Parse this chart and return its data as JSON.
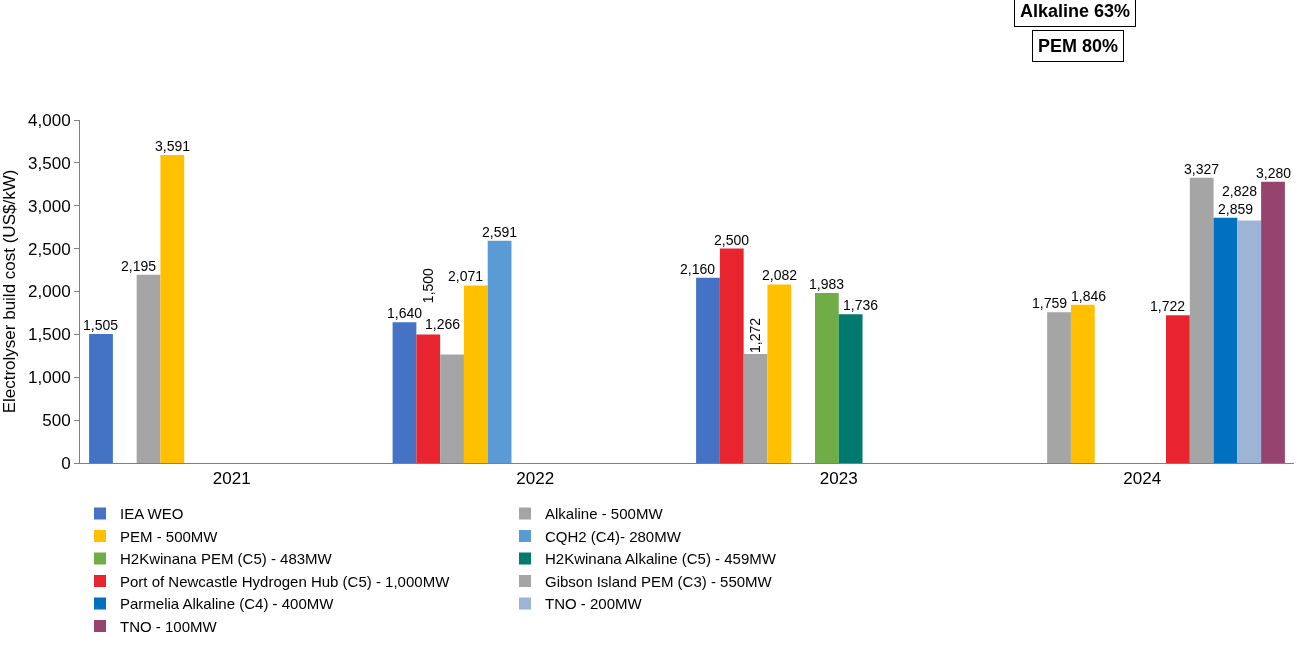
{
  "chart_data": {
    "type": "bar",
    "ylabel": "Electrolyser build cost (US$/kW)",
    "categories": [
      "2021",
      "2022",
      "2023",
      "2024"
    ],
    "ylim": [
      0,
      4000
    ],
    "yticks": [
      0,
      500,
      {
        "value": 1000,
        "label": "1,000"
      },
      {
        "value": 1500,
        "label": "1,500"
      },
      {
        "value": 2000,
        "label": "2,000"
      },
      {
        "value": 2500,
        "label": "2,500"
      },
      {
        "value": 3000,
        "label": "3,000"
      },
      {
        "value": 3500,
        "label": "3,500"
      },
      {
        "value": 4000,
        "label": "4,000"
      }
    ],
    "grid": false,
    "legend": "bottom",
    "series": [
      {
        "name": "IEA WEO",
        "color": "#4472c4",
        "values": [
          1505,
          1640,
          2160,
          null
        ],
        "value_labels": [
          "1,505",
          "1,640",
          "2,160",
          null
        ]
      },
      {
        "color": "#e8242f",
        "values": [
          null,
          1500,
          2500,
          null
        ],
        "value_labels": [
          null,
          "1,500",
          "2,500",
          null
        ]
      },
      {
        "name": "Alkaline - 500MW",
        "color": "#a5a5a5",
        "values": [
          2195,
          1266,
          1272,
          1759
        ],
        "value_labels": [
          "2,195",
          "1,266",
          "1,272",
          "1,759"
        ]
      },
      {
        "name": "PEM - 500MW",
        "color": "#ffc000",
        "values": [
          3591,
          2071,
          2082,
          1846
        ],
        "value_labels": [
          "3,591",
          "2,071",
          "2,082",
          "1,846"
        ]
      },
      {
        "name": "CQH2 (C4)- 280MW",
        "color": "#5b9bd5",
        "values": [
          null,
          2591,
          null,
          null
        ],
        "value_labels": [
          null,
          "2,591",
          null,
          null
        ]
      },
      {
        "name": "H2Kwinana PEM (C5) - 483MW",
        "color": "#70ad47",
        "values": [
          null,
          null,
          1983,
          null
        ],
        "value_labels": [
          null,
          null,
          "1,983",
          null
        ]
      },
      {
        "name": "H2Kwinana Alkaline (C5) - 459MW",
        "color": "#007a6e",
        "values": [
          null,
          null,
          1736,
          null
        ],
        "value_labels": [
          null,
          null,
          "1,736",
          null
        ]
      },
      {
        "name": "Port of Newcastle Hydrogen Hub (C5) - 1,000MW",
        "color": "#e8242f",
        "values": [
          null,
          null,
          null,
          1722
        ],
        "value_labels": [
          null,
          null,
          null,
          "1,722"
        ]
      },
      {
        "name": "Gibson Island PEM (C3) - 550MW",
        "color": "#a5a5a5",
        "values": [
          null,
          null,
          null,
          3327
        ],
        "value_labels": [
          null,
          null,
          null,
          "3,327"
        ]
      },
      {
        "name": "Parmelia Alkaline (C4) - 400MW",
        "color": "#0070c0",
        "values": [
          null,
          null,
          null,
          2859
        ],
        "value_labels": [
          null,
          null,
          null,
          "2,859"
        ]
      },
      {
        "name": "TNO - 200MW",
        "color": "#9eb4d6",
        "values": [
          null,
          null,
          null,
          2828
        ],
        "value_labels": [
          null,
          null,
          null,
          "2,828"
        ]
      },
      {
        "name": "TNO - 100MW",
        "color": "#96446e",
        "values": [
          null,
          null,
          null,
          3280
        ],
        "value_labels": [
          null,
          null,
          null,
          "3,280"
        ]
      }
    ],
    "annotations": [
      "Alkaline 63%",
      "PEM 80%"
    ]
  }
}
